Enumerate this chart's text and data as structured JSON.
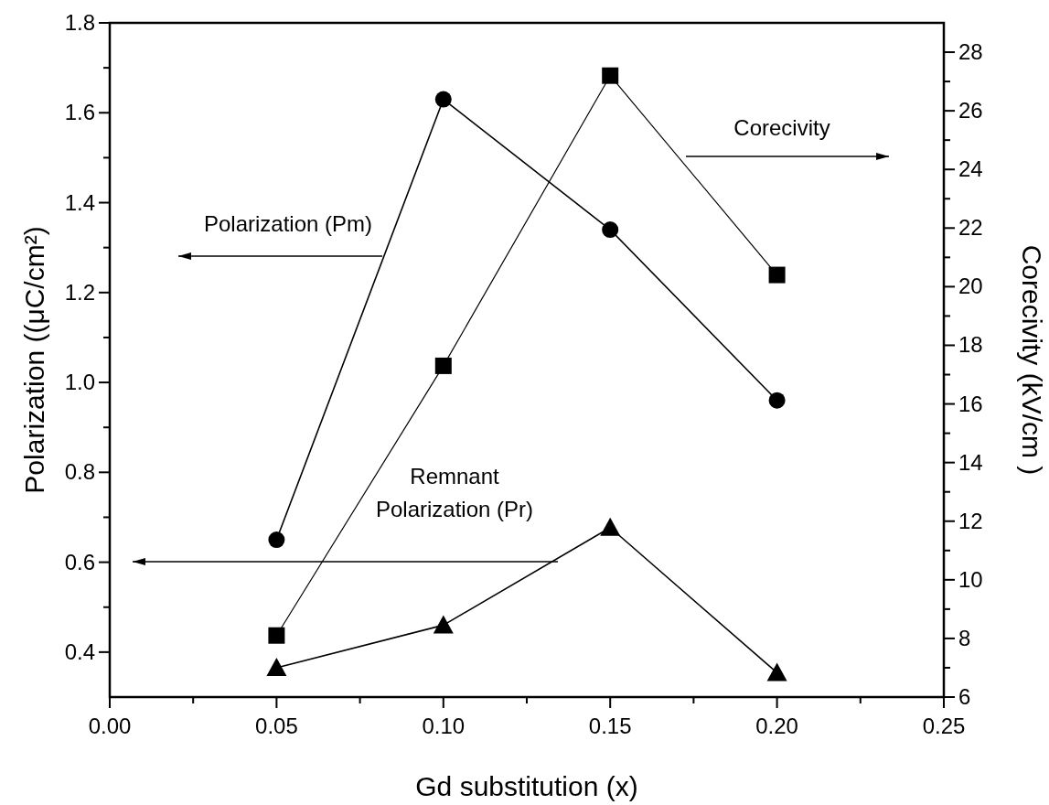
{
  "chart_data": {
    "type": "line",
    "xlabel": "Gd substitution (x)",
    "ylabel": "Polarization ((μC/cm²)",
    "y2label": "Corecivity (kV/cm )",
    "x": [
      0.05,
      0.1,
      0.15,
      0.2
    ],
    "series": [
      {
        "color": "#000000",
        "marker": "circle",
        "values": [
          0.65,
          1.63,
          1.34,
          0.96
        ]
      },
      {
        "color": "#000000",
        "marker": "triangle",
        "values": [
          0.365,
          0.46,
          0.677,
          0.354
        ]
      },
      {
        "color": "#000000",
        "marker": "square",
        "axis": "y2",
        "values": [
          8.1,
          17.3,
          27.2,
          20.4
        ]
      }
    ],
    "xlim": [
      0,
      0.25
    ],
    "xticks": [
      {
        "value": 0,
        "label": "0.00"
      },
      {
        "value": 0.025,
        "label": null
      },
      {
        "value": 0.05,
        "label": "0.05"
      },
      {
        "value": 0.075,
        "label": null
      },
      {
        "value": 0.1,
        "label": "0.10"
      },
      {
        "value": 0.125,
        "label": null
      },
      {
        "value": 0.15,
        "label": "0.15"
      },
      {
        "value": 0.175,
        "label": null
      },
      {
        "value": 0.2,
        "label": "0.20"
      },
      {
        "value": 0.225,
        "label": null
      },
      {
        "value": 0.25,
        "label": "0.25"
      }
    ],
    "ylim": [
      0.3,
      1.8
    ],
    "yticks": [
      0.4,
      {
        "value": 0.5,
        "label": null
      },
      0.6,
      {
        "value": 0.7,
        "label": null
      },
      0.8,
      {
        "value": 0.9,
        "label": null
      },
      {
        "value": 1.0,
        "label": "1.0"
      },
      {
        "value": 1.1,
        "label": null
      },
      1.2,
      {
        "value": 1.3,
        "label": null
      },
      1.4,
      {
        "value": 1.5,
        "label": null
      },
      1.6,
      {
        "value": 1.7,
        "label": null
      },
      1.8
    ],
    "y2lim": [
      6,
      29
    ],
    "y2ticks": [
      6,
      {
        "value": 7,
        "label": null
      },
      8,
      {
        "value": 9,
        "label": null
      },
      10,
      {
        "value": 11,
        "label": null
      },
      12,
      {
        "value": 13,
        "label": null
      },
      14,
      {
        "value": 15,
        "label": null
      },
      16,
      {
        "value": 17,
        "label": null
      },
      18,
      {
        "value": 19,
        "label": null
      },
      20,
      {
        "value": 21,
        "label": null
      },
      22,
      {
        "value": 23,
        "label": null
      },
      24,
      {
        "value": 25,
        "label": null
      },
      26,
      {
        "value": 27,
        "label": null
      },
      28
    ],
    "annotations": [
      "Polarization (Pm)",
      "Remnant Polarization (Pr)",
      "Corecivity"
    ],
    "line_style": "solid"
  }
}
